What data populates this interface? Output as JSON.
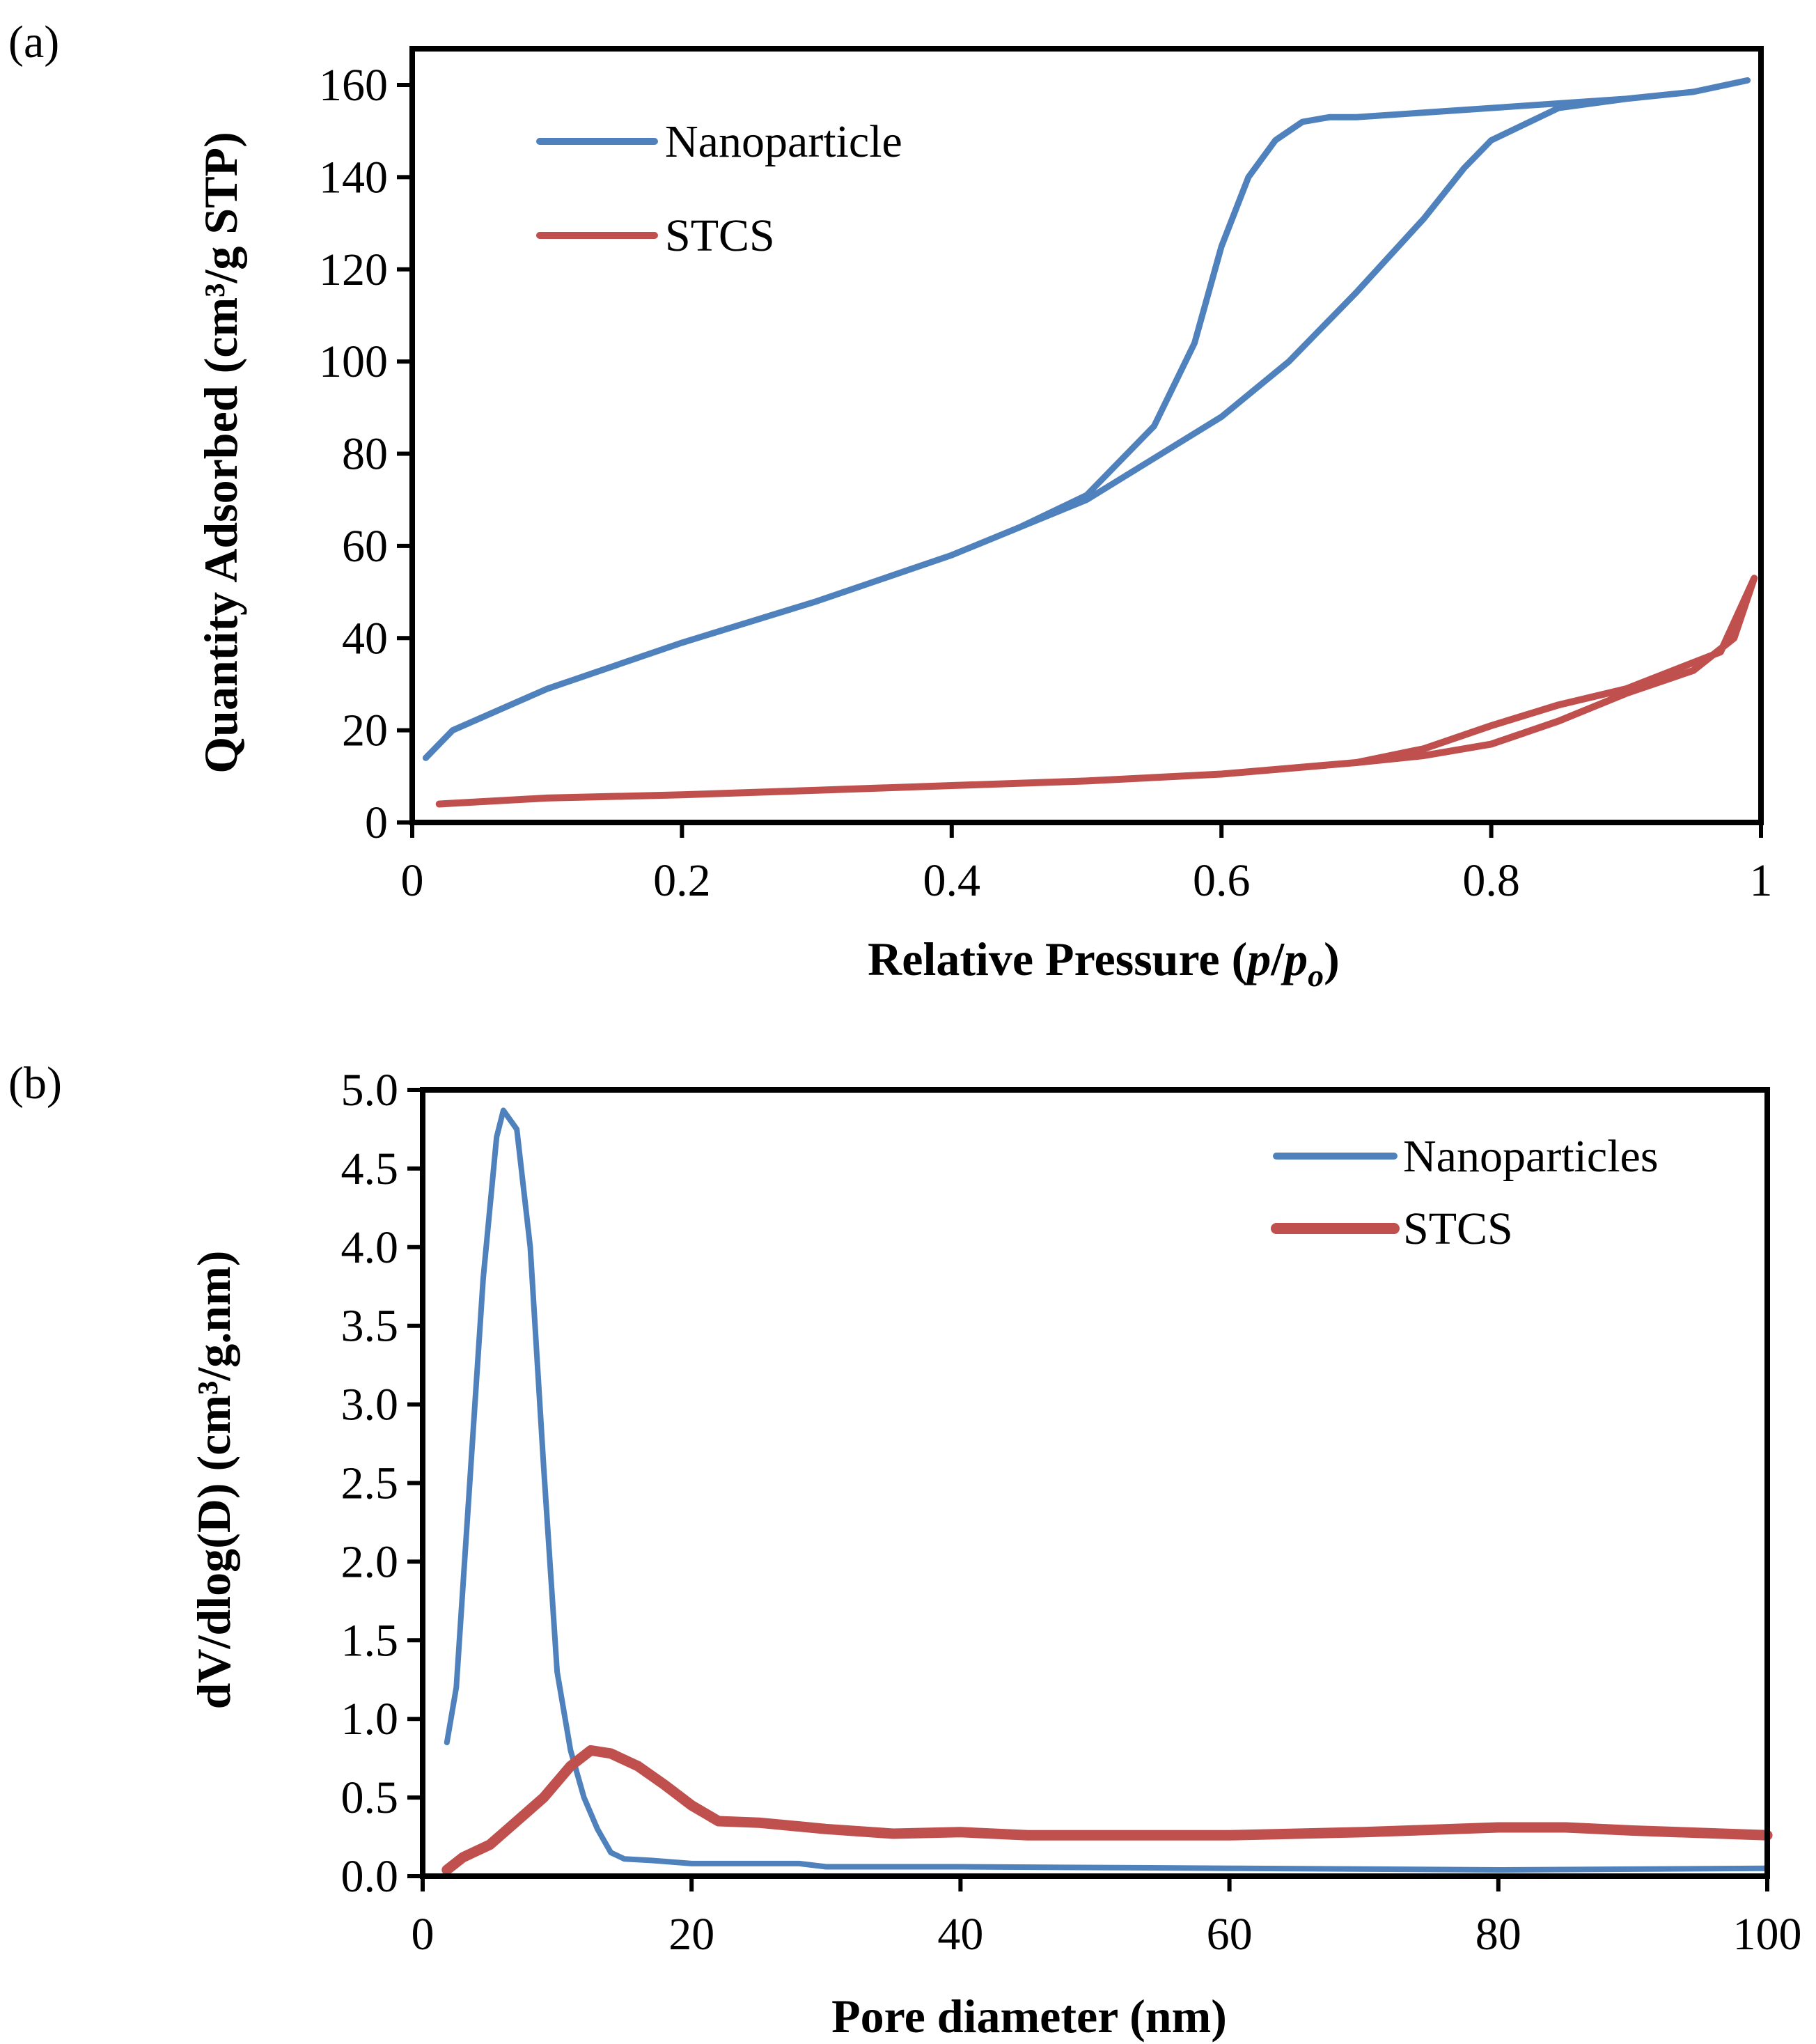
{
  "chart_data": [
    {
      "type": "line",
      "panel_label": "(a)",
      "xlabel_parts": {
        "prefix": "Relative Pressure (",
        "p1": "p",
        "slash": "/",
        "p2": "p",
        "sub": "o",
        "suffix": ")"
      },
      "ylabel": "Quantity Adsorbed (cm³/g STP)",
      "xlim": [
        0,
        1
      ],
      "ylim": [
        0,
        160
      ],
      "xticks": [
        "0",
        "0.2",
        "0.4",
        "0.6",
        "0.8",
        "1"
      ],
      "xtick_values": [
        0,
        0.2,
        0.4,
        0.6,
        0.8,
        1
      ],
      "yticks": [
        "0",
        "20",
        "40",
        "60",
        "80",
        "100",
        "120",
        "140",
        "160"
      ],
      "ytick_values": [
        0,
        20,
        40,
        60,
        80,
        100,
        120,
        140,
        160
      ],
      "grid": false,
      "legend_position": "top-left",
      "series": [
        {
          "name": "Nanoparticle",
          "color": "#4F81BD",
          "x": [
            0.01,
            0.03,
            0.1,
            0.2,
            0.3,
            0.4,
            0.5,
            0.6,
            0.65,
            0.7,
            0.75,
            0.78,
            0.8,
            0.85,
            0.9,
            0.95,
            0.99,
            0.95,
            0.9,
            0.8,
            0.7,
            0.68,
            0.66,
            0.64,
            0.62,
            0.6,
            0.58,
            0.55,
            0.5,
            0.45,
            0.4
          ],
          "y": [
            14,
            20,
            29,
            39,
            48,
            58,
            70,
            88,
            100,
            115,
            131,
            142,
            148,
            155,
            157,
            158.5,
            161,
            158.5,
            157,
            155,
            153,
            153,
            152,
            148,
            140,
            125,
            104,
            86,
            71,
            64,
            58
          ]
        },
        {
          "name": "STCS",
          "color": "#C0504D",
          "x": [
            0.02,
            0.1,
            0.2,
            0.3,
            0.4,
            0.5,
            0.6,
            0.7,
            0.75,
            0.8,
            0.85,
            0.9,
            0.95,
            0.98,
            0.995,
            0.97,
            0.9,
            0.85,
            0.8,
            0.75,
            0.7
          ],
          "y": [
            4,
            5.3,
            6,
            7,
            8,
            9,
            10.5,
            13,
            14.5,
            17,
            22,
            28,
            33,
            40,
            53,
            37,
            29,
            25.5,
            21,
            16,
            13
          ]
        }
      ]
    },
    {
      "type": "line",
      "panel_label": "(b)",
      "xlabel": "Pore diameter (nm)",
      "ylabel": "dV/dlog(D) (cm³/g.nm)",
      "xlim": [
        0,
        100
      ],
      "ylim": [
        0,
        5
      ],
      "xticks": [
        "0",
        "20",
        "40",
        "60",
        "80",
        "100"
      ],
      "xtick_values": [
        0,
        20,
        40,
        60,
        80,
        100
      ],
      "yticks": [
        "0.0",
        "0.5",
        "1.0",
        "1.5",
        "2.0",
        "2.5",
        "3.0",
        "3.5",
        "4.0",
        "4.5",
        "5.0"
      ],
      "ytick_values": [
        0,
        0.5,
        1,
        1.5,
        2,
        2.5,
        3,
        3.5,
        4,
        4.5,
        5
      ],
      "grid": false,
      "legend_position": "top-right",
      "series": [
        {
          "name": "Nanoparticles",
          "color": "#4F81BD",
          "x": [
            1.8,
            2.5,
            3.5,
            4.5,
            5.5,
            6,
            7,
            8,
            9,
            10,
            11,
            12,
            13,
            14,
            15,
            17,
            20,
            25,
            28,
            30,
            40,
            60,
            80,
            100
          ],
          "y": [
            0.85,
            1.2,
            2.5,
            3.8,
            4.7,
            4.87,
            4.75,
            4.0,
            2.6,
            1.3,
            0.8,
            0.5,
            0.3,
            0.15,
            0.11,
            0.1,
            0.08,
            0.08,
            0.08,
            0.06,
            0.06,
            0.05,
            0.04,
            0.05
          ]
        },
        {
          "name": "STCS",
          "color": "#C0504D",
          "x": [
            1.8,
            3,
            5,
            7,
            9,
            11,
            12.5,
            14,
            16,
            18,
            20,
            22,
            25,
            30,
            35,
            40,
            45,
            60,
            70,
            80,
            85,
            90,
            100
          ],
          "y": [
            0.04,
            0.12,
            0.2,
            0.35,
            0.5,
            0.7,
            0.8,
            0.78,
            0.7,
            0.58,
            0.45,
            0.35,
            0.34,
            0.3,
            0.27,
            0.28,
            0.26,
            0.26,
            0.28,
            0.31,
            0.31,
            0.29,
            0.26
          ]
        }
      ]
    }
  ]
}
